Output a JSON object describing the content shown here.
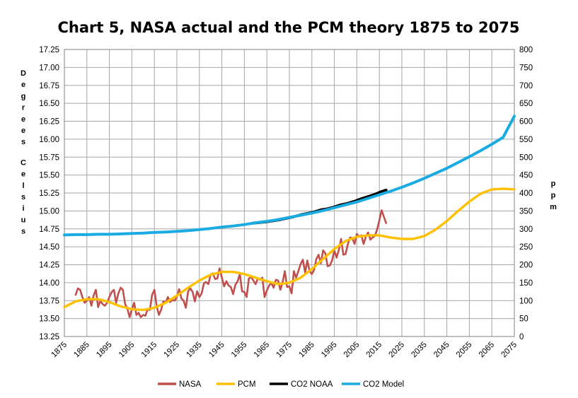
{
  "chart_data": {
    "type": "line",
    "title": "Chart 5, NASA actual and the PCM theory 1875 to 2075",
    "ylabel_left": "Degrees Celsius",
    "ylabel_right": "ppm",
    "xlim": [
      1875,
      2075
    ],
    "ylim_left": [
      13.25,
      17.25
    ],
    "ylim_right": [
      0,
      800
    ],
    "x_ticks": [
      "1875",
      "1885",
      "1895",
      "1905",
      "1915",
      "1925",
      "1935",
      "1945",
      "1955",
      "1965",
      "1975",
      "1985",
      "1995",
      "2005",
      "2015",
      "2025",
      "2035",
      "2045",
      "2055",
      "2065",
      "2075"
    ],
    "y_left_ticks": [
      "17.25",
      "17.00",
      "16.75",
      "16.50",
      "16.25",
      "16.00",
      "15.75",
      "15.50",
      "15.25",
      "15.00",
      "14.75",
      "14.50",
      "14.25",
      "14.00",
      "13.75",
      "13.50",
      "13.25"
    ],
    "y_right_ticks": [
      "800",
      "750",
      "700",
      "650",
      "600",
      "550",
      "500",
      "450",
      "400",
      "350",
      "300",
      "250",
      "200",
      "150",
      "100",
      "50",
      "0"
    ],
    "grid": true,
    "legend_position": "bottom",
    "series": [
      {
        "name": "NASA",
        "axis": "left",
        "color": "#c0504d",
        "x": [
          1880,
          1881,
          1882,
          1883,
          1884,
          1885,
          1886,
          1887,
          1888,
          1889,
          1890,
          1891,
          1892,
          1893,
          1894,
          1895,
          1896,
          1897,
          1898,
          1899,
          1900,
          1901,
          1902,
          1903,
          1904,
          1905,
          1906,
          1907,
          1908,
          1909,
          1910,
          1911,
          1912,
          1913,
          1914,
          1915,
          1916,
          1917,
          1918,
          1919,
          1920,
          1921,
          1922,
          1923,
          1924,
          1925,
          1926,
          1927,
          1928,
          1929,
          1930,
          1931,
          1932,
          1933,
          1934,
          1935,
          1936,
          1937,
          1938,
          1939,
          1940,
          1941,
          1942,
          1943,
          1944,
          1945,
          1946,
          1947,
          1948,
          1949,
          1950,
          1951,
          1952,
          1953,
          1954,
          1955,
          1956,
          1957,
          1958,
          1959,
          1960,
          1961,
          1962,
          1963,
          1964,
          1965,
          1966,
          1967,
          1968,
          1969,
          1970,
          1971,
          1972,
          1973,
          1974,
          1975,
          1976,
          1977,
          1978,
          1979,
          1980,
          1981,
          1982,
          1983,
          1984,
          1985,
          1986,
          1987,
          1988,
          1989,
          1990,
          1991,
          1992,
          1993,
          1994,
          1995,
          1996,
          1997,
          1998,
          1999,
          2000,
          2001,
          2002,
          2003,
          2004,
          2005,
          2006,
          2007,
          2008,
          2009,
          2010,
          2011,
          2012,
          2013,
          2014,
          2015,
          2016,
          2017,
          2018
        ],
        "values": [
          13.83,
          13.92,
          13.9,
          13.8,
          13.72,
          13.75,
          13.8,
          13.68,
          13.82,
          13.9,
          13.66,
          13.75,
          13.7,
          13.68,
          13.72,
          13.8,
          13.87,
          13.9,
          13.72,
          13.85,
          13.93,
          13.9,
          13.7,
          13.64,
          13.52,
          13.63,
          13.72,
          13.55,
          13.58,
          13.52,
          13.55,
          13.54,
          13.63,
          13.62,
          13.83,
          13.9,
          13.68,
          13.55,
          13.62,
          13.74,
          13.72,
          13.8,
          13.73,
          13.76,
          13.75,
          13.8,
          13.91,
          13.78,
          13.75,
          13.65,
          13.88,
          13.92,
          13.87,
          13.74,
          13.88,
          13.8,
          13.85,
          13.99,
          14.01,
          13.98,
          14.11,
          14.13,
          14.05,
          14.06,
          14.2,
          14.07,
          13.95,
          14.02,
          13.96,
          13.94,
          13.84,
          13.97,
          14.02,
          14.12,
          13.88,
          13.87,
          13.8,
          14.06,
          14.08,
          14.03,
          13.98,
          14.06,
          14.04,
          14.07,
          13.8,
          13.89,
          13.96,
          14.0,
          13.93,
          14.04,
          14.03,
          13.9,
          14.01,
          14.16,
          13.94,
          13.95,
          13.85,
          14.16,
          14.07,
          14.16,
          14.26,
          14.32,
          14.14,
          14.31,
          14.16,
          14.12,
          14.18,
          14.33,
          14.39,
          14.27,
          14.45,
          14.41,
          14.23,
          14.24,
          14.31,
          14.45,
          14.35,
          14.46,
          14.61,
          14.39,
          14.4,
          14.54,
          14.63,
          14.62,
          14.54,
          14.68,
          14.64,
          14.66,
          14.54,
          14.64,
          14.7,
          14.6,
          14.63,
          14.65,
          14.74,
          14.87,
          15.01,
          14.92,
          14.83
        ]
      },
      {
        "name": "PCM",
        "axis": "left",
        "color": "#ffc000",
        "x": [
          1875,
          1880,
          1885,
          1890,
          1895,
          1900,
          1905,
          1910,
          1915,
          1920,
          1925,
          1930,
          1935,
          1940,
          1945,
          1950,
          1955,
          1960,
          1965,
          1970,
          1975,
          1980,
          1985,
          1990,
          1995,
          2000,
          2005,
          2010,
          2015,
          2020,
          2025,
          2030,
          2035,
          2040,
          2045,
          2050,
          2055,
          2060,
          2065,
          2070,
          2075
        ],
        "values": [
          13.66,
          13.74,
          13.77,
          13.77,
          13.73,
          13.67,
          13.63,
          13.62,
          13.65,
          13.72,
          13.82,
          13.93,
          14.03,
          14.11,
          14.15,
          14.15,
          14.12,
          14.07,
          14.02,
          13.98,
          14.0,
          14.07,
          14.19,
          14.33,
          14.47,
          14.58,
          14.64,
          14.66,
          14.66,
          14.63,
          14.61,
          14.61,
          14.65,
          14.74,
          14.86,
          15.0,
          15.13,
          15.24,
          15.3,
          15.31,
          15.3
        ]
      },
      {
        "name": "CO2 NOAA",
        "axis": "right",
        "color": "#000000",
        "x": [
          1959,
          1962,
          1965,
          1968,
          1971,
          1974,
          1977,
          1980,
          1983,
          1986,
          1989,
          1992,
          1995,
          1998,
          2001,
          2004,
          2007,
          2010,
          2013,
          2016,
          2018
        ],
        "values": [
          316,
          318,
          320,
          323,
          326,
          330,
          334,
          339,
          343,
          347,
          353,
          356,
          361,
          367,
          371,
          377,
          384,
          390,
          396,
          404,
          408
        ]
      },
      {
        "name": "CO2 Model",
        "axis": "right",
        "color": "#1aabe3",
        "x": [
          1875,
          1880,
          1885,
          1890,
          1895,
          1900,
          1905,
          1910,
          1915,
          1920,
          1925,
          1930,
          1935,
          1940,
          1945,
          1950,
          1955,
          1960,
          1965,
          1970,
          1975,
          1980,
          1985,
          1990,
          1995,
          2000,
          2005,
          2010,
          2015,
          2020,
          2025,
          2030,
          2035,
          2040,
          2045,
          2050,
          2055,
          2060,
          2065,
          2070,
          2075
        ],
        "values": [
          283,
          284,
          284,
          285,
          285,
          286,
          287,
          288,
          290,
          291,
          293,
          295,
          298,
          301,
          305,
          308,
          312,
          317,
          321,
          326,
          332,
          338,
          344,
          351,
          359,
          367,
          375,
          385,
          395,
          405,
          416,
          428,
          441,
          455,
          469,
          485,
          501,
          518,
          536,
          555,
          614
        ]
      }
    ]
  }
}
